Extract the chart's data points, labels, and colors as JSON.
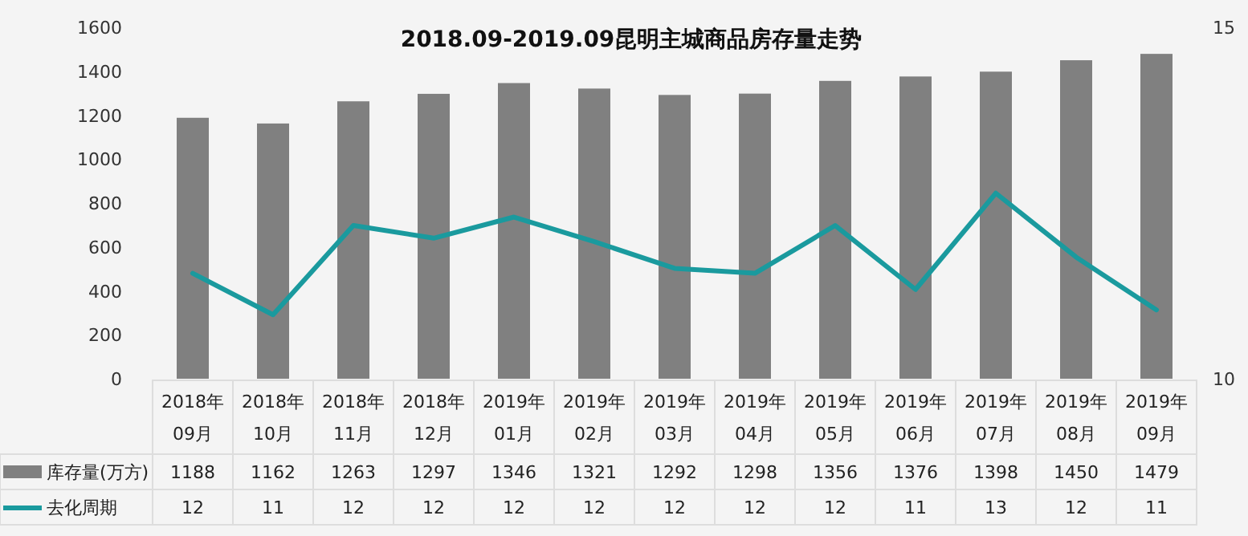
{
  "chart_data": {
    "type": "bar",
    "title": "2018.09-2019.09昆明主城商品房存量走势",
    "categories": [
      "2018年\n09月",
      "2018年\n10月",
      "2018年\n11月",
      "2018年\n12月",
      "2019年\n01月",
      "2019年\n02月",
      "2019年\n03月",
      "2019年\n04月",
      "2019年\n05月",
      "2019年\n06月",
      "2019年\n07月",
      "2019年\n08月",
      "2019年\n09月"
    ],
    "series": [
      {
        "name": "库存量(万方)",
        "color": "#808080",
        "values": [
          1188,
          1162,
          1263,
          1297,
          1346,
          1321,
          1292,
          1298,
          1356,
          1376,
          1398,
          1450,
          1479
        ],
        "value_labels": [
          "1188",
          "1162",
          "1263",
          "1297",
          "1346",
          "1321",
          "1292",
          "1298",
          "1356",
          "1376",
          "1398",
          "1450",
          "1479"
        ]
      },
      {
        "name": "去化周期",
        "type": "line",
        "axis": "y2",
        "color": "#1a9a9e",
        "values": [
          11.5,
          10.91,
          12.18,
          12.0,
          12.3,
          11.95,
          11.57,
          11.5,
          12.18,
          11.27,
          12.64,
          11.73,
          10.98
        ],
        "value_labels": [
          "12",
          "11",
          "12",
          "12",
          "12",
          "12",
          "12",
          "12",
          "12",
          "11",
          "13",
          "12",
          "11"
        ]
      }
    ],
    "ylim": [
      0,
      1600
    ],
    "yticks": [
      0,
      200,
      400,
      600,
      800,
      1000,
      1200,
      1400,
      1600
    ],
    "y2lim": [
      10,
      15
    ],
    "y2ticks": [
      10,
      15
    ],
    "grid": false,
    "legend": "bottom",
    "marker": "none",
    "line_style": "solid"
  }
}
